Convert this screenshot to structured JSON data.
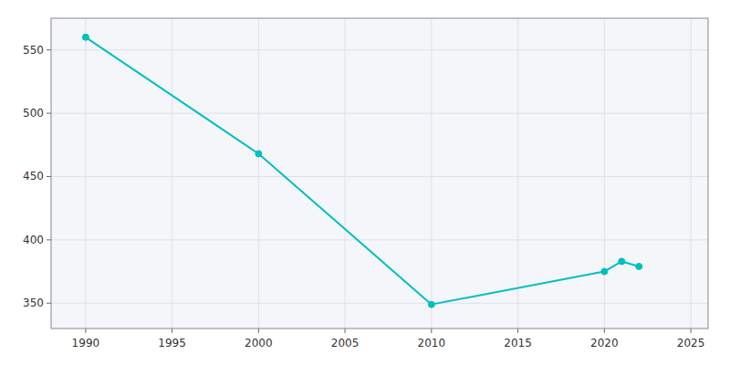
{
  "chart_data": {
    "type": "line",
    "x": [
      1990,
      2000,
      2010,
      2020,
      2021,
      2022
    ],
    "values": [
      560,
      468,
      349,
      375,
      383,
      379
    ],
    "color": "#00BFBF",
    "marker": "circle",
    "xlim": [
      1988,
      2026
    ],
    "ylim": [
      330,
      575
    ],
    "xticks": [
      1990,
      1995,
      2000,
      2005,
      2010,
      2015,
      2020,
      2025
    ],
    "yticks": [
      350,
      400,
      450,
      500,
      550
    ],
    "grid": true
  }
}
